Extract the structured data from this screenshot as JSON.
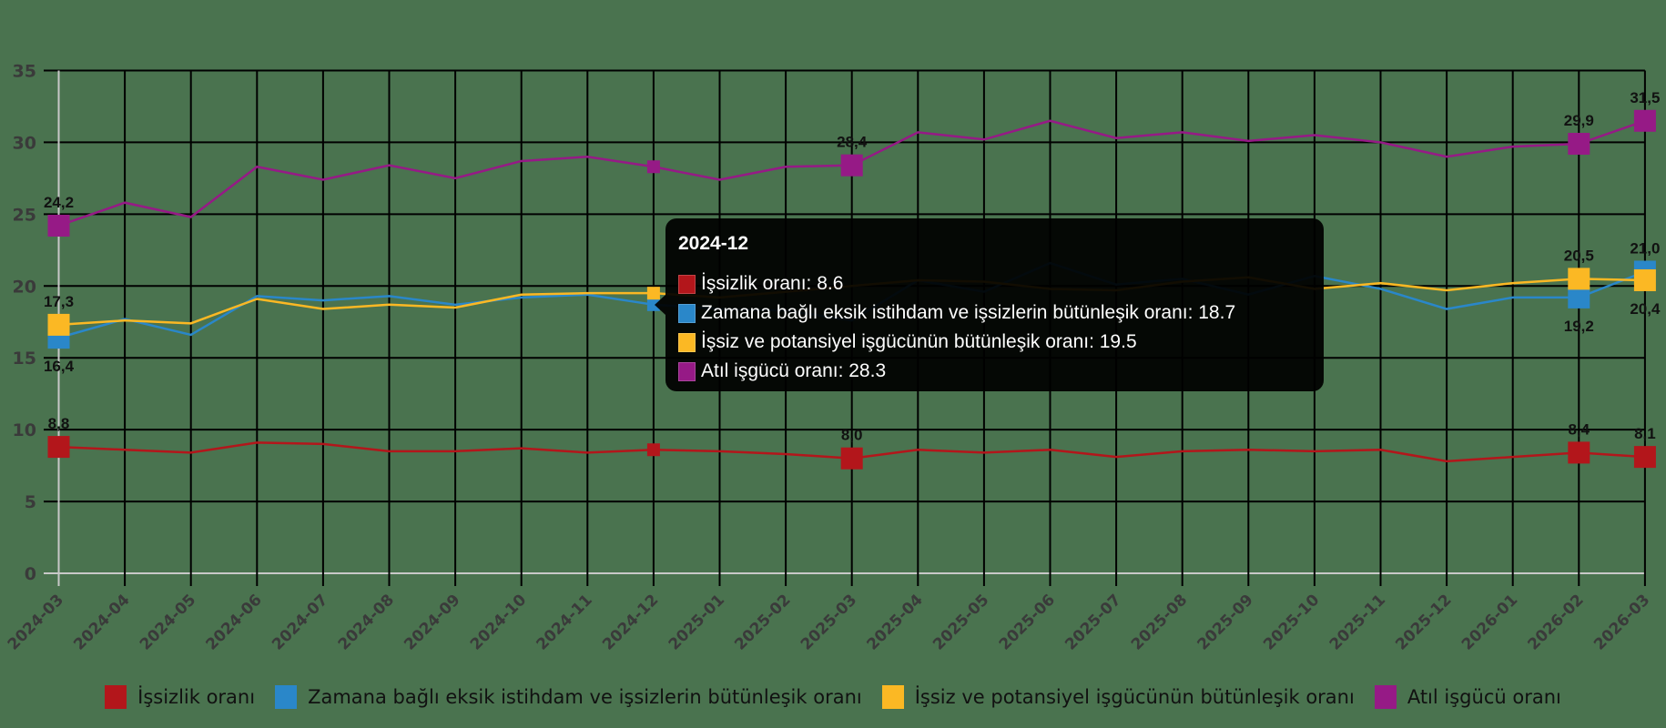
{
  "chart_data": {
    "type": "line",
    "title": "",
    "xlabel": "",
    "ylabel": "",
    "ylim": [
      0,
      35
    ],
    "yticks": [
      0,
      5,
      10,
      15,
      20,
      25,
      30,
      35
    ],
    "grid": true,
    "legend_position": "bottom",
    "categories": [
      "2024-03",
      "2024-04",
      "2024-05",
      "2024-06",
      "2024-07",
      "2024-08",
      "2024-09",
      "2024-10",
      "2024-11",
      "2024-12",
      "2025-01",
      "2025-02",
      "2025-03",
      "2025-04",
      "2025-05",
      "2025-06",
      "2025-07",
      "2025-08",
      "2025-09",
      "2025-10",
      "2025-11",
      "2025-12",
      "2026-01",
      "2026-02",
      "2026-03"
    ],
    "series": [
      {
        "name": "İşsizlik oranı",
        "color": "#b3161b",
        "values": [
          8.8,
          8.6,
          8.4,
          9.1,
          9.0,
          8.5,
          8.5,
          8.7,
          8.4,
          8.6,
          8.5,
          8.3,
          8.0,
          8.6,
          8.4,
          8.6,
          8.1,
          8.5,
          8.6,
          8.5,
          8.6,
          7.8,
          8.1,
          8.4,
          8.1
        ],
        "labels": {
          "0": "8,8",
          "12": "8,0",
          "23": "8,4",
          "24": "8,1"
        }
      },
      {
        "name": "Zamana bağlı eksik istihdam ve işsizlerin bütünleşik oranı",
        "color": "#2a87c9",
        "values": [
          16.4,
          17.7,
          16.6,
          19.3,
          19.0,
          19.3,
          18.7,
          19.2,
          19.4,
          18.7,
          18.4,
          18.3,
          17.6,
          20.4,
          19.6,
          21.6,
          20.1,
          20.5,
          19.4,
          20.7,
          19.8,
          18.4,
          19.2,
          19.2,
          21.0
        ],
        "labels": {
          "0": "16,4",
          "23": "19,2",
          "24": "21,0"
        }
      },
      {
        "name": "İşsiz ve potansiyel işgücünün bütünleşik oranı",
        "color": "#fbb824",
        "values": [
          17.3,
          17.6,
          17.4,
          19.1,
          18.4,
          18.7,
          18.5,
          19.4,
          19.5,
          19.5,
          19.2,
          19.6,
          20.0,
          20.4,
          20.3,
          19.8,
          19.7,
          20.3,
          20.6,
          19.8,
          20.2,
          19.7,
          20.2,
          20.5,
          20.4
        ],
        "labels": {
          "0": "17,3",
          "23": "20,5",
          "24": "20,4"
        }
      },
      {
        "name": "Atıl işgücü oranı",
        "color": "#961a86",
        "values": [
          24.2,
          25.8,
          24.8,
          28.3,
          27.4,
          28.4,
          27.5,
          28.7,
          29.0,
          28.3,
          27.4,
          28.3,
          28.4,
          30.7,
          30.2,
          31.5,
          30.3,
          30.7,
          30.1,
          30.5,
          30.0,
          29.0,
          29.7,
          29.9,
          31.5
        ],
        "labels": {
          "0": "24,2",
          "12": "28,4",
          "23": "29,9",
          "24": "31,5"
        }
      }
    ],
    "highlighted_category": "2024-12"
  },
  "legend": {
    "items": [
      {
        "label": "İşsizlik oranı",
        "color": "#b3161b"
      },
      {
        "label": "Zamana bağlı eksik istihdam ve işsizlerin bütünleşik oranı",
        "color": "#2a87c9"
      },
      {
        "label": "İşsiz ve potansiyel işgücünün bütünleşik oranı",
        "color": "#fbb824"
      },
      {
        "label": "Atıl işgücü oranı",
        "color": "#961a86"
      }
    ]
  },
  "tooltip": {
    "title": "2024-12",
    "rows": [
      {
        "text": "İşsizlik oranı: 8.6",
        "color": "#b3161b"
      },
      {
        "text": "Zamana bağlı eksik istihdam ve işsizlerin bütünleşik oranı: 18.7",
        "color": "#2a87c9"
      },
      {
        "text": "İşsiz ve potansiyel işgücünün bütünleşik oranı: 19.5",
        "color": "#fbb824"
      },
      {
        "text": "Atıl işgücü oranı: 28.3",
        "color": "#961a86"
      }
    ]
  }
}
